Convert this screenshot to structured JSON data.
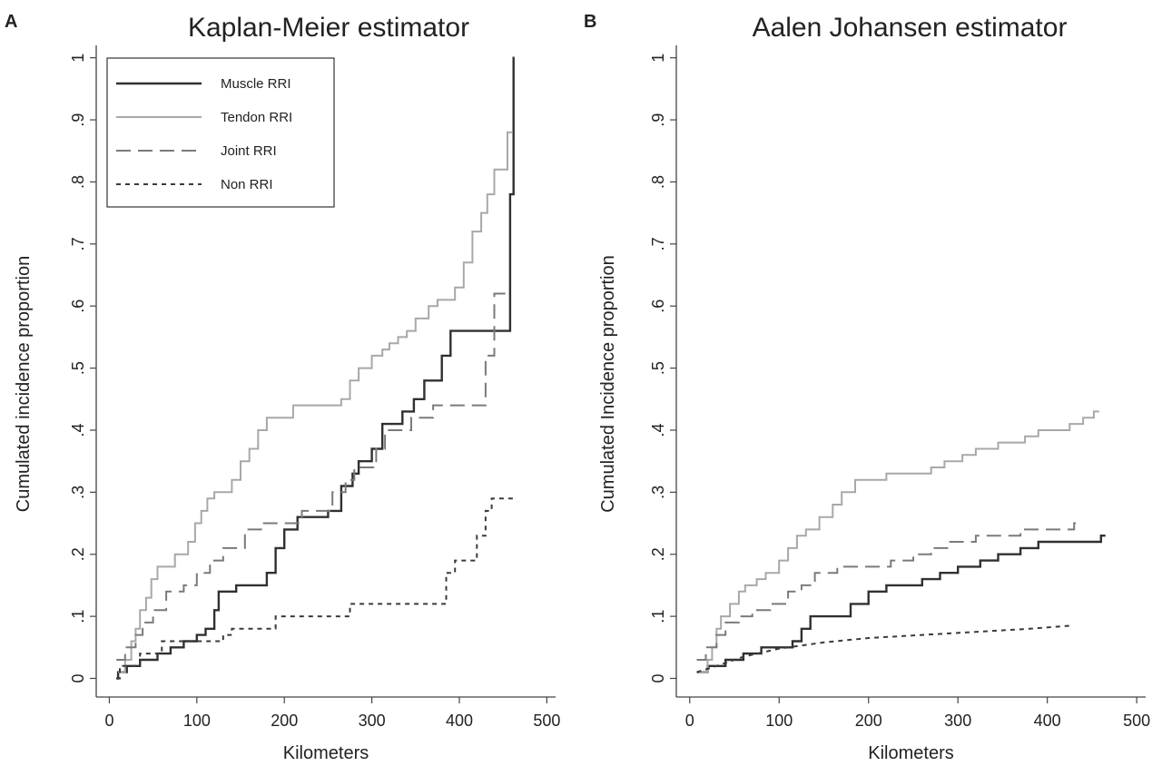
{
  "figure": {
    "background": "#ffffff"
  },
  "styles": {
    "Muscle RRI": {
      "color": "#303030",
      "dash": ""
    },
    "Tendon RRI": {
      "color": "#a8a8a8",
      "dash": ""
    },
    "Joint RRI": {
      "color": "#7a7a7a",
      "dash": "16 8"
    },
    "Non RRI": {
      "color": "#3a3a3a",
      "dash": "5 5"
    }
  },
  "chart_data": [
    {
      "panel": "A",
      "type": "line",
      "title": "Kaplan-Meier estimator",
      "xlabel": "Kilometers",
      "ylabel": "Cumulated incidence proportion",
      "xlim": [
        -15,
        510
      ],
      "ylim": [
        -0.03,
        1.02
      ],
      "xticks": [
        0,
        100,
        200,
        300,
        400,
        500
      ],
      "xtick_labels": [
        "0",
        "100",
        "200",
        "300",
        "400",
        "500"
      ],
      "yticks": [
        0,
        0.1,
        0.2,
        0.3,
        0.4,
        0.5,
        0.6,
        0.7,
        0.8,
        0.9,
        1.0
      ],
      "ytick_labels": [
        "0",
        ".1",
        ".2",
        ".3",
        ".4",
        ".5",
        ".6",
        ".7",
        ".8",
        ".9",
        "1"
      ],
      "grid": false,
      "legend": {
        "position": "top-left",
        "entries": [
          "Muscle RRI",
          "Tendon RRI",
          "Joint RRI",
          "Non RRI"
        ]
      },
      "series": [
        {
          "name": "Muscle RRI",
          "step": true,
          "points": [
            [
              8,
              0.0
            ],
            [
              10,
              0.01
            ],
            [
              20,
              0.02
            ],
            [
              35,
              0.03
            ],
            [
              55,
              0.04
            ],
            [
              70,
              0.05
            ],
            [
              85,
              0.06
            ],
            [
              100,
              0.07
            ],
            [
              110,
              0.08
            ],
            [
              120,
              0.11
            ],
            [
              125,
              0.14
            ],
            [
              145,
              0.15
            ],
            [
              180,
              0.17
            ],
            [
              190,
              0.21
            ],
            [
              200,
              0.24
            ],
            [
              215,
              0.26
            ],
            [
              250,
              0.27
            ],
            [
              265,
              0.31
            ],
            [
              278,
              0.33
            ],
            [
              285,
              0.35
            ],
            [
              300,
              0.37
            ],
            [
              312,
              0.41
            ],
            [
              335,
              0.43
            ],
            [
              348,
              0.45
            ],
            [
              360,
              0.48
            ],
            [
              380,
              0.52
            ],
            [
              390,
              0.56
            ],
            [
              455,
              0.56
            ],
            [
              458,
              0.78
            ],
            [
              462,
              1.0
            ],
            [
              463,
              1.0
            ]
          ]
        },
        {
          "name": "Tendon RRI",
          "step": true,
          "points": [
            [
              10,
              0.01
            ],
            [
              18,
              0.03
            ],
            [
              25,
              0.06
            ],
            [
              30,
              0.08
            ],
            [
              35,
              0.11
            ],
            [
              42,
              0.13
            ],
            [
              48,
              0.16
            ],
            [
              55,
              0.18
            ],
            [
              65,
              0.18
            ],
            [
              75,
              0.2
            ],
            [
              90,
              0.22
            ],
            [
              98,
              0.25
            ],
            [
              105,
              0.27
            ],
            [
              112,
              0.29
            ],
            [
              120,
              0.3
            ],
            [
              140,
              0.32
            ],
            [
              150,
              0.35
            ],
            [
              160,
              0.37
            ],
            [
              170,
              0.4
            ],
            [
              180,
              0.42
            ],
            [
              210,
              0.44
            ],
            [
              265,
              0.45
            ],
            [
              275,
              0.48
            ],
            [
              285,
              0.5
            ],
            [
              300,
              0.52
            ],
            [
              312,
              0.53
            ],
            [
              320,
              0.54
            ],
            [
              330,
              0.55
            ],
            [
              340,
              0.56
            ],
            [
              350,
              0.58
            ],
            [
              365,
              0.6
            ],
            [
              375,
              0.61
            ],
            [
              395,
              0.63
            ],
            [
              405,
              0.67
            ],
            [
              415,
              0.72
            ],
            [
              425,
              0.75
            ],
            [
              432,
              0.78
            ],
            [
              440,
              0.82
            ],
            [
              450,
              0.82
            ],
            [
              455,
              0.88
            ],
            [
              460,
              0.88
            ]
          ]
        },
        {
          "name": "Joint RRI",
          "step": true,
          "points": [
            [
              8,
              0.03
            ],
            [
              18,
              0.05
            ],
            [
              30,
              0.07
            ],
            [
              38,
              0.09
            ],
            [
              50,
              0.11
            ],
            [
              65,
              0.14
            ],
            [
              85,
              0.15
            ],
            [
              100,
              0.17
            ],
            [
              115,
              0.19
            ],
            [
              130,
              0.21
            ],
            [
              155,
              0.24
            ],
            [
              175,
              0.25
            ],
            [
              220,
              0.27
            ],
            [
              255,
              0.3
            ],
            [
              270,
              0.32
            ],
            [
              280,
              0.34
            ],
            [
              305,
              0.37
            ],
            [
              315,
              0.4
            ],
            [
              345,
              0.42
            ],
            [
              370,
              0.44
            ],
            [
              420,
              0.44
            ],
            [
              430,
              0.52
            ],
            [
              440,
              0.62
            ],
            [
              455,
              0.62
            ]
          ]
        },
        {
          "name": "Non RRI",
          "step": true,
          "points": [
            [
              8,
              0.0
            ],
            [
              12,
              0.02
            ],
            [
              35,
              0.04
            ],
            [
              60,
              0.06
            ],
            [
              75,
              0.06
            ],
            [
              130,
              0.07
            ],
            [
              140,
              0.08
            ],
            [
              190,
              0.1
            ],
            [
              275,
              0.12
            ],
            [
              375,
              0.12
            ],
            [
              385,
              0.17
            ],
            [
              395,
              0.19
            ],
            [
              415,
              0.19
            ],
            [
              420,
              0.23
            ],
            [
              430,
              0.27
            ],
            [
              437,
              0.29
            ],
            [
              465,
              0.29
            ]
          ]
        }
      ]
    },
    {
      "panel": "B",
      "type": "line",
      "title": "Aalen Johansen estimator",
      "xlabel": "Kilometers",
      "ylabel": "Cumulated Incidence proportion",
      "xlim": [
        -15,
        510
      ],
      "ylim": [
        -0.03,
        1.02
      ],
      "xticks": [
        0,
        100,
        200,
        300,
        400,
        500
      ],
      "xtick_labels": [
        "0",
        "100",
        "200",
        "300",
        "400",
        "500"
      ],
      "yticks": [
        0,
        0.1,
        0.2,
        0.3,
        0.4,
        0.5,
        0.6,
        0.7,
        0.8,
        0.9,
        1.0
      ],
      "ytick_labels": [
        "0",
        ".1",
        ".2",
        ".3",
        ".4",
        ".5",
        ".6",
        ".7",
        ".8",
        ".9",
        "1"
      ],
      "grid": false,
      "series": [
        {
          "name": "Muscle RRI",
          "step": true,
          "points": [
            [
              8,
              0.01
            ],
            [
              20,
              0.02
            ],
            [
              40,
              0.03
            ],
            [
              60,
              0.04
            ],
            [
              80,
              0.05
            ],
            [
              100,
              0.05
            ],
            [
              115,
              0.06
            ],
            [
              125,
              0.08
            ],
            [
              135,
              0.1
            ],
            [
              160,
              0.1
            ],
            [
              180,
              0.12
            ],
            [
              200,
              0.14
            ],
            [
              220,
              0.15
            ],
            [
              245,
              0.15
            ],
            [
              260,
              0.16
            ],
            [
              280,
              0.17
            ],
            [
              300,
              0.18
            ],
            [
              325,
              0.19
            ],
            [
              345,
              0.2
            ],
            [
              370,
              0.21
            ],
            [
              390,
              0.22
            ],
            [
              455,
              0.22
            ],
            [
              460,
              0.23
            ],
            [
              465,
              0.23
            ]
          ]
        },
        {
          "name": "Tendon RRI",
          "step": true,
          "points": [
            [
              10,
              0.01
            ],
            [
              20,
              0.03
            ],
            [
              25,
              0.05
            ],
            [
              30,
              0.08
            ],
            [
              35,
              0.1
            ],
            [
              45,
              0.12
            ],
            [
              55,
              0.14
            ],
            [
              62,
              0.15
            ],
            [
              75,
              0.16
            ],
            [
              85,
              0.17
            ],
            [
              100,
              0.19
            ],
            [
              110,
              0.21
            ],
            [
              120,
              0.23
            ],
            [
              130,
              0.24
            ],
            [
              145,
              0.26
            ],
            [
              160,
              0.28
            ],
            [
              170,
              0.3
            ],
            [
              185,
              0.32
            ],
            [
              205,
              0.32
            ],
            [
              220,
              0.33
            ],
            [
              260,
              0.33
            ],
            [
              270,
              0.34
            ],
            [
              285,
              0.35
            ],
            [
              305,
              0.36
            ],
            [
              320,
              0.37
            ],
            [
              345,
              0.38
            ],
            [
              375,
              0.39
            ],
            [
              390,
              0.4
            ],
            [
              425,
              0.41
            ],
            [
              440,
              0.42
            ],
            [
              452,
              0.43
            ],
            [
              458,
              0.43
            ]
          ]
        },
        {
          "name": "Joint RRI",
          "step": true,
          "points": [
            [
              8,
              0.03
            ],
            [
              18,
              0.05
            ],
            [
              30,
              0.07
            ],
            [
              40,
              0.09
            ],
            [
              55,
              0.1
            ],
            [
              70,
              0.11
            ],
            [
              90,
              0.12
            ],
            [
              110,
              0.14
            ],
            [
              125,
              0.15
            ],
            [
              140,
              0.17
            ],
            [
              165,
              0.18
            ],
            [
              210,
              0.18
            ],
            [
              225,
              0.19
            ],
            [
              250,
              0.2
            ],
            [
              270,
              0.21
            ],
            [
              290,
              0.22
            ],
            [
              320,
              0.23
            ],
            [
              370,
              0.24
            ],
            [
              425,
              0.24
            ],
            [
              430,
              0.25
            ],
            [
              435,
              0.25
            ]
          ]
        },
        {
          "name": "Non RRI",
          "step": false,
          "points": [
            [
              8,
              0.01
            ],
            [
              30,
              0.02
            ],
            [
              60,
              0.035
            ],
            [
              100,
              0.048
            ],
            [
              150,
              0.058
            ],
            [
              200,
              0.065
            ],
            [
              260,
              0.07
            ],
            [
              320,
              0.075
            ],
            [
              380,
              0.08
            ],
            [
              425,
              0.085
            ]
          ]
        }
      ]
    }
  ]
}
